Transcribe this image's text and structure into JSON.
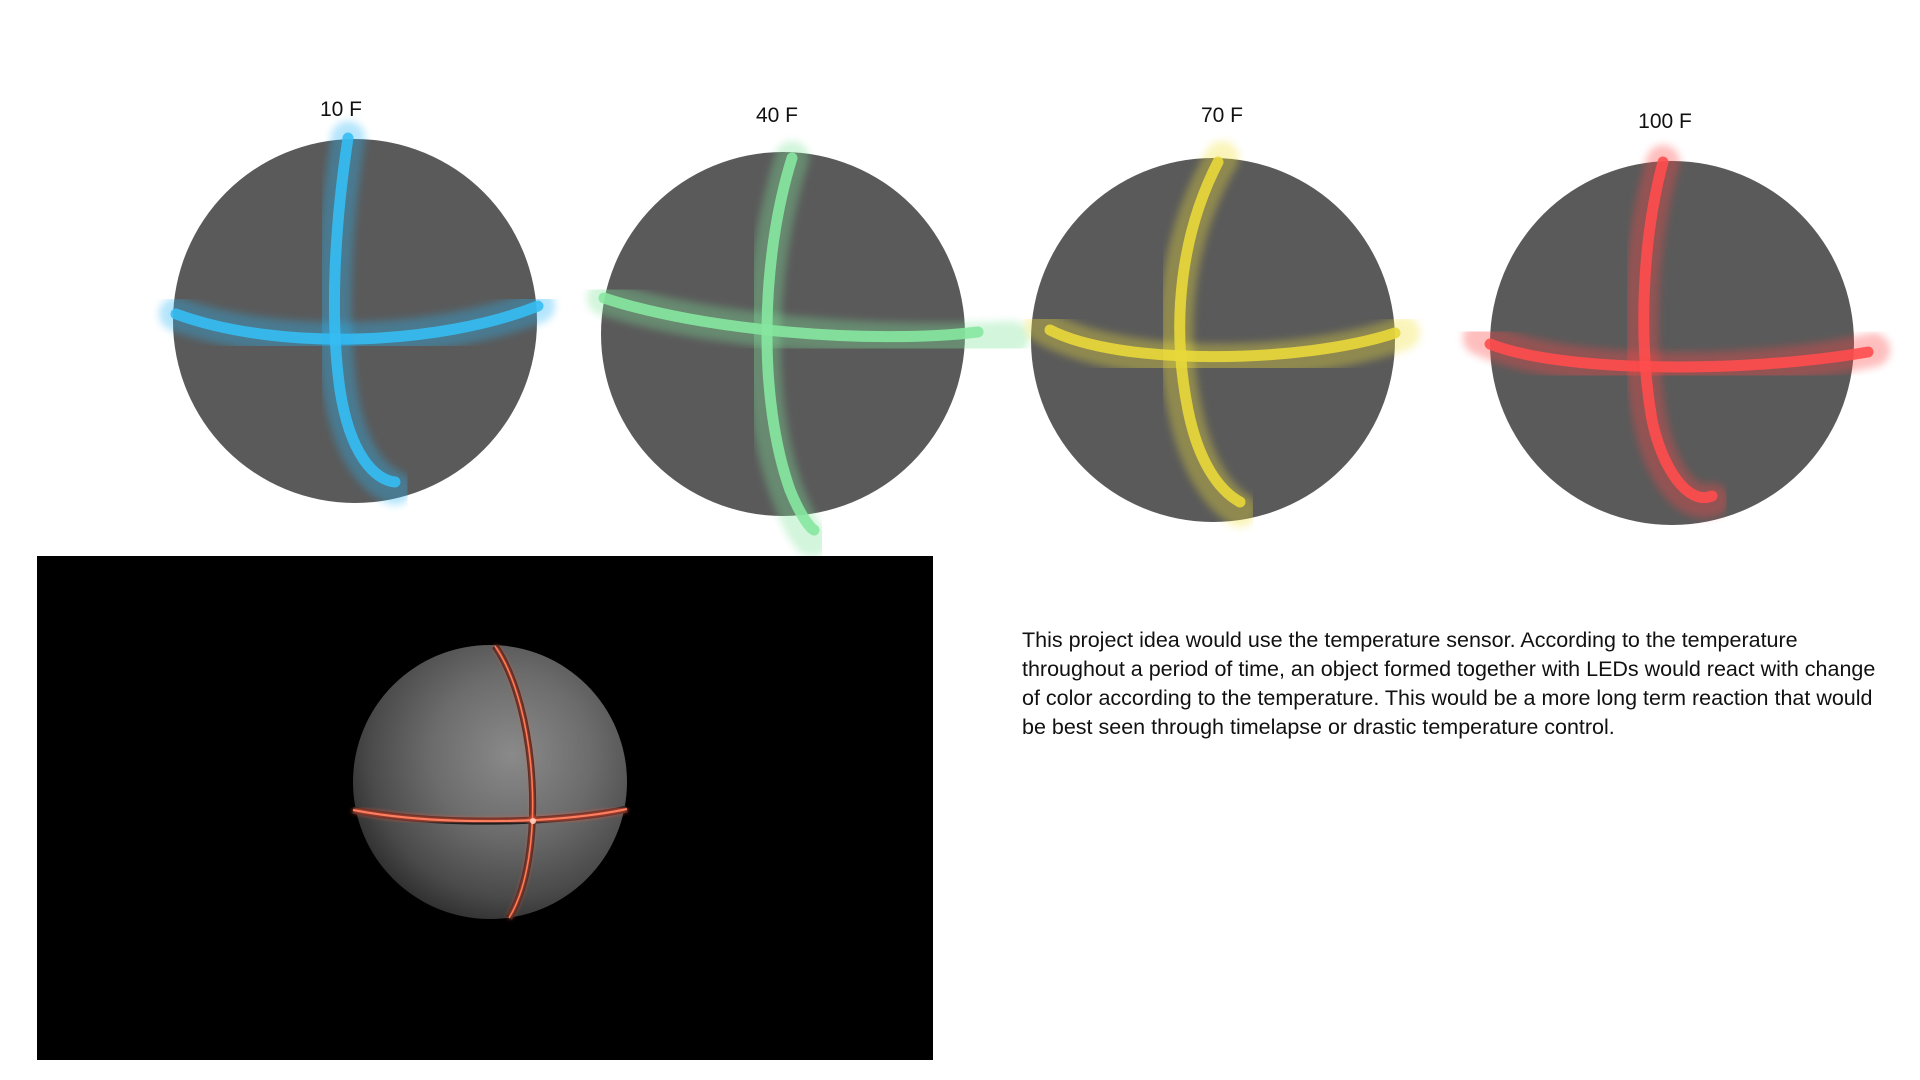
{
  "spheres": [
    {
      "label": "10 F",
      "glow_color": "#29b6f6"
    },
    {
      "label": "40 F",
      "glow_color": "#7fe39a"
    },
    {
      "label": "70 F",
      "glow_color": "#f2e23a"
    },
    {
      "label": "100 F",
      "glow_color": "#ff4747"
    }
  ],
  "sphere_fill": "#5a5a5a",
  "render": {
    "background": "#000000",
    "led_color": "#ff5a3c"
  },
  "description": "This project idea would use the temperature sensor. According to the temperature throughout a period of time, an object formed together with LEDs would react with change of color according to the temperature. This would be a more long term reaction that would be best seen through timelapse or drastic temperature control."
}
